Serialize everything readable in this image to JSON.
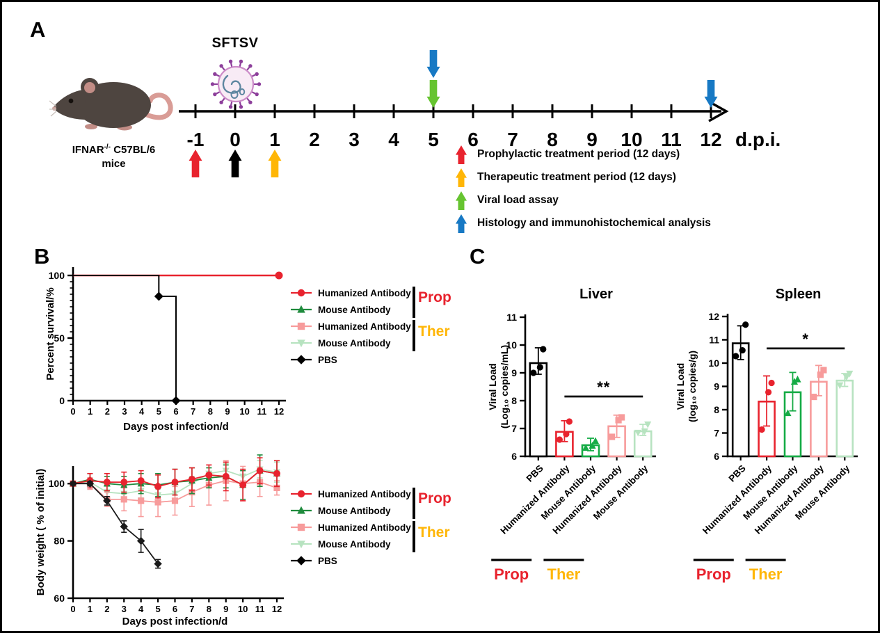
{
  "panels": {
    "a": {
      "label": "A",
      "strain_prefix": "IFNAR",
      "strain_sup": "-/-",
      "strain_suffix": " C57BL/6",
      "strain_line2": "mice",
      "virus_label": "SFTSV",
      "dpi_label": "d.p.i.",
      "timeline_ticks": [
        "-1",
        "0",
        "1",
        "2",
        "3",
        "4",
        "5",
        "6",
        "7",
        "8",
        "9",
        "10",
        "11",
        "12"
      ],
      "up_arrows": [
        {
          "tick_index": 0,
          "color": "#e8232e"
        },
        {
          "tick_index": 1,
          "color": "#000000"
        },
        {
          "tick_index": 2,
          "color": "#ffb606"
        }
      ],
      "down_arrows": [
        {
          "tick_index": 6,
          "colors": [
            "#1779c4",
            "#66c430"
          ]
        },
        {
          "tick_index": 13,
          "colors": [
            "#1779c4"
          ]
        }
      ],
      "legend": [
        {
          "color": "#e8232e",
          "label": "Prophylactic treatment period (12 days)"
        },
        {
          "color": "#ffb606",
          "label": "Therapeutic treatment period (12 days)"
        },
        {
          "color": "#66c430",
          "label": "Viral load assay"
        },
        {
          "color": "#1779c4",
          "label": "Histology and immunohistochemical analysis"
        }
      ]
    },
    "b": {
      "label": "B",
      "legend_items": [
        {
          "label": "Humanized Antibody",
          "color": "#e8232e",
          "marker": "circle"
        },
        {
          "label": "Mouse Antibody",
          "color": "#1f8b3d",
          "marker": "triangle"
        },
        {
          "label": "Humanized Antibody",
          "color": "#f79b9b",
          "marker": "square"
        },
        {
          "label": "Mouse Antibody",
          "color": "#b7e3c0",
          "marker": "triangle-down"
        },
        {
          "label": "PBS",
          "color": "#000000",
          "marker": "diamond"
        }
      ],
      "groups": [
        {
          "label": "Prop",
          "color": "#e8232e"
        },
        {
          "label": "Ther",
          "color": "#ffb606"
        }
      ]
    },
    "c": {
      "label": "C"
    }
  },
  "chart_data": [
    {
      "id": "survival",
      "type": "line",
      "title": "",
      "xlabel": "Days post infection/d",
      "ylabel": "Percent survival/%",
      "xlim": [
        0,
        12
      ],
      "ylim": [
        0,
        100
      ],
      "xticks": [
        0,
        1,
        2,
        3,
        4,
        5,
        6,
        7,
        8,
        9,
        10,
        11,
        12
      ],
      "yticks": [
        0,
        50,
        100
      ],
      "yminor": 5,
      "series": [
        {
          "name": "Mouse Antibody (Ther)",
          "color": "#b7e3c0",
          "marker": "triangle-down",
          "msize": 0,
          "lw": 2,
          "x": [
            0,
            12
          ],
          "y": [
            100,
            100
          ]
        },
        {
          "name": "Humanized Antibody (Ther)",
          "color": "#f79b9b",
          "marker": "square",
          "msize": 0,
          "lw": 2,
          "x": [
            0,
            12
          ],
          "y": [
            100,
            100
          ]
        },
        {
          "name": "Mouse Antibody (Prop)",
          "color": "#1f8b3d",
          "marker": "triangle",
          "msize": 0,
          "lw": 2,
          "x": [
            0,
            12
          ],
          "y": [
            100,
            100
          ]
        },
        {
          "name": "Humanized Antibody (Prop)",
          "color": "#e8232e",
          "marker": "circle",
          "msize": 5.5,
          "lw": 2.4,
          "x": [
            0,
            12
          ],
          "y": [
            100,
            100
          ],
          "marker_points": [
            [
              12,
              100
            ]
          ]
        },
        {
          "name": "PBS",
          "color": "#000000",
          "marker": "diamond",
          "msize": 5,
          "lw": 2,
          "x": [
            0,
            5,
            5,
            6,
            6
          ],
          "y": [
            100,
            100,
            83.3,
            83.3,
            0
          ],
          "marker_points": [
            [
              5,
              83.3
            ],
            [
              6,
              0
            ]
          ]
        }
      ]
    },
    {
      "id": "body_weight",
      "type": "line",
      "title": "",
      "xlabel": "Days post infection/d",
      "ylabel": "Body weight ( % of initial)",
      "xlim": [
        0,
        12
      ],
      "ylim": [
        60,
        110
      ],
      "xticks": [
        0,
        1,
        2,
        3,
        4,
        5,
        6,
        7,
        8,
        9,
        10,
        11,
        12
      ],
      "yticks": [
        60,
        80,
        100
      ],
      "series": [
        {
          "name": "Mouse Antibody (Ther)",
          "color": "#b7e3c0",
          "marker": "triangle-down",
          "msize": 4.6,
          "lw": 1.8,
          "markevery": true,
          "x": [
            0,
            1,
            2,
            3,
            4,
            5,
            6,
            7,
            8,
            9,
            10,
            11,
            12
          ],
          "y": [
            100,
            100.5,
            97,
            96.5,
            97.5,
            96,
            96.5,
            100,
            103.5,
            104.5,
            102.5,
            105,
            104
          ],
          "err": [
            0.8,
            1.5,
            2,
            2.5,
            2.5,
            2,
            2.5,
            2.5,
            2,
            2.5,
            2.5,
            3,
            3.5
          ]
        },
        {
          "name": "Humanized Antibody (Ther)",
          "color": "#f79b9b",
          "marker": "square",
          "msize": 4.6,
          "lw": 1.8,
          "markevery": true,
          "x": [
            0,
            1,
            2,
            3,
            4,
            5,
            6,
            7,
            8,
            9,
            10,
            11,
            12
          ],
          "y": [
            100,
            100,
            94.5,
            94.5,
            94,
            93.5,
            94,
            97,
            99.5,
            101,
            100,
            100.5,
            98.5
          ],
          "err": [
            0.8,
            2,
            2.5,
            4,
            5.5,
            5,
            5,
            5,
            7,
            7,
            6,
            5,
            2.5
          ]
        },
        {
          "name": "Mouse Antibody (Prop)",
          "color": "#1f8b3d",
          "marker": "triangle",
          "msize": 4.6,
          "lw": 1.8,
          "markevery": true,
          "x": [
            0,
            1,
            2,
            3,
            4,
            5,
            6,
            7,
            8,
            9,
            10,
            11,
            12
          ],
          "y": [
            100,
            101.5,
            100,
            99.5,
            100,
            99.5,
            100.5,
            101,
            102,
            102.5,
            99.5,
            104.5,
            103.5
          ],
          "err": [
            0.8,
            2,
            2.5,
            3,
            3.5,
            4,
            4.5,
            4.5,
            3.5,
            4,
            5,
            5.5,
            4.5
          ]
        },
        {
          "name": "Humanized Antibody (Prop)",
          "color": "#e8232e",
          "marker": "circle",
          "msize": 5,
          "lw": 1.9,
          "markevery": true,
          "x": [
            0,
            1,
            2,
            3,
            4,
            5,
            6,
            7,
            8,
            9,
            10,
            11,
            12
          ],
          "y": [
            100,
            101,
            100.5,
            100.5,
            101,
            99,
            100.5,
            101.5,
            103,
            102.5,
            99.5,
            104.5,
            103.5
          ],
          "err": [
            0.8,
            2.5,
            3,
            3.5,
            3.5,
            4,
            4.5,
            4,
            3.5,
            5,
            5.5,
            4.5,
            4.5
          ]
        },
        {
          "name": "PBS",
          "color": "#1a1a1a",
          "marker": "diamond",
          "msize": 4.4,
          "lw": 1.8,
          "markevery": true,
          "x": [
            0,
            1,
            2,
            3,
            4,
            5
          ],
          "y": [
            100,
            100,
            94,
            85,
            80,
            72
          ],
          "err": [
            0.5,
            0.8,
            1.5,
            2,
            4,
            1.5
          ]
        }
      ]
    },
    {
      "id": "liver",
      "type": "bar",
      "title": "Liver",
      "ylabel": [
        "Viral Load",
        "(Log₁₀ copies/mL)"
      ],
      "ylim": [
        6,
        11
      ],
      "yticks": [
        6,
        7,
        8,
        9,
        10,
        11
      ],
      "categories": [
        "PBS",
        "Humanized Antibody",
        "Mouse Antibody",
        "Humanized Antibody",
        "Mouse Antibody"
      ],
      "colors": [
        "#000000",
        "#e8232e",
        "#15ab45",
        "#f79b9b",
        "#b7e3c0"
      ],
      "markers": [
        "circle",
        "circle",
        "triangle",
        "square",
        "triangle-down"
      ],
      "values": [
        9.35,
        6.88,
        6.4,
        7.08,
        6.9
      ],
      "err_up": [
        0.55,
        0.4,
        0.25,
        0.4,
        0.25
      ],
      "err_down": [
        0.4,
        0.35,
        0.2,
        0.4,
        0.15
      ],
      "points": [
        [
          9.0,
          9.2,
          9.85
        ],
        [
          6.6,
          6.8,
          7.25
        ],
        [
          6.3,
          6.38,
          6.55
        ],
        [
          6.7,
          7.3,
          7.4
        ],
        [
          6.85,
          6.9,
          7.15
        ]
      ],
      "significance": {
        "label": "**",
        "y": 8.15,
        "from": 1,
        "to": 4
      },
      "group_labels": [
        {
          "label": "Prop",
          "color": "#e8232e",
          "from": 1,
          "to": 2
        },
        {
          "label": "Ther",
          "color": "#ffb606",
          "from": 3,
          "to": 4
        }
      ]
    },
    {
      "id": "spleen",
      "type": "bar",
      "title": "Spleen",
      "ylabel": [
        "Viral Load",
        "(log₁₀ copies/g)"
      ],
      "ylim": [
        6,
        12
      ],
      "yticks": [
        6,
        7,
        8,
        9,
        10,
        11,
        12
      ],
      "categories": [
        "PBS",
        "Humanized Antibody",
        "Mouse Antibody",
        "Humanized Antibody",
        "Mouse Antibody"
      ],
      "colors": [
        "#000000",
        "#e8232e",
        "#15ab45",
        "#f79b9b",
        "#b7e3c0"
      ],
      "markers": [
        "circle",
        "circle",
        "triangle",
        "square",
        "triangle-down"
      ],
      "values": [
        10.85,
        8.35,
        8.75,
        9.2,
        9.25
      ],
      "err_up": [
        0.75,
        1.1,
        0.85,
        0.7,
        0.3
      ],
      "err_down": [
        0.7,
        1.05,
        0.8,
        0.6,
        0.25
      ],
      "points": [
        [
          10.3,
          10.55,
          11.65
        ],
        [
          7.15,
          8.75,
          9.15
        ],
        [
          7.85,
          9.2,
          9.3
        ],
        [
          8.55,
          9.5,
          9.7
        ],
        [
          9.05,
          9.4,
          9.55
        ]
      ],
      "significance": {
        "label": "*",
        "y": 10.63,
        "from": 1,
        "to": 4
      },
      "group_labels": [
        {
          "label": "Prop",
          "color": "#e8232e",
          "from": 1,
          "to": 2
        },
        {
          "label": "Ther",
          "color": "#ffb606",
          "from": 3,
          "to": 4
        }
      ]
    }
  ]
}
